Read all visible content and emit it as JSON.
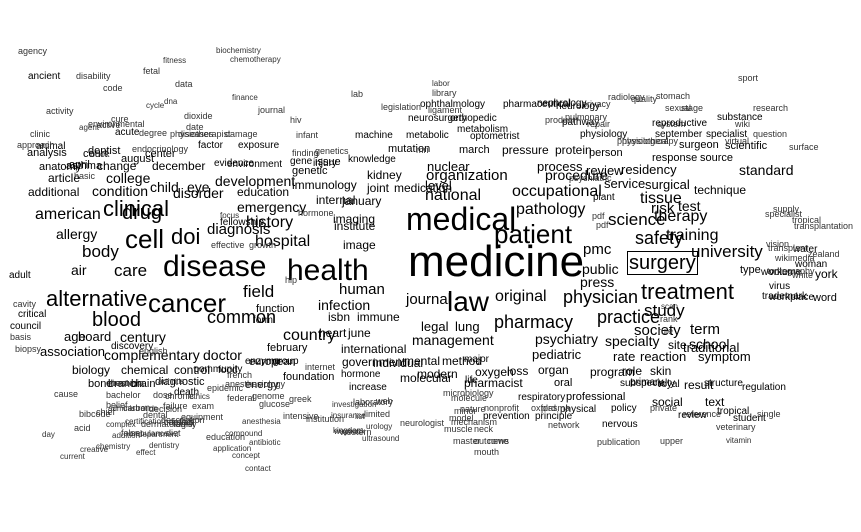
{
  "words": [
    "medicine",
    "medical",
    "health",
    "disease",
    "law",
    "cell",
    "cancer",
    "surgery",
    "patient",
    "treatment",
    "alternative",
    "doi",
    "drug",
    "clinical",
    "blood",
    "hospital",
    "physician",
    "practice",
    "pharmacy",
    "care",
    "history",
    "common",
    "body",
    "human",
    "original",
    "journal",
    "safety",
    "science",
    "university",
    "study",
    "field",
    "infection",
    "therapy",
    "tissue",
    "training",
    "society",
    "term",
    "school",
    "pathology",
    "national",
    "occupational",
    "american",
    "diagnosis",
    "emergency",
    "management",
    "legal",
    "lung",
    "psychiatry",
    "specialty",
    "country",
    "public",
    "press",
    "pmc",
    "review",
    "residency",
    "service",
    "surgical",
    "organization",
    "procedure",
    "child",
    "eye",
    "development",
    "disorder",
    "education",
    "air",
    "allergy",
    "condition",
    "college",
    "association",
    "complementary",
    "doctor",
    "age",
    "board",
    "century",
    "molecular",
    "pharmacist",
    "modern",
    "oxygen",
    "organ",
    "program",
    "pediatric",
    "rate",
    "reaction",
    "symptom",
    "traditional",
    "site",
    "role",
    "skin",
    "result",
    "social",
    "text",
    "risk",
    "test",
    "standard",
    "technique",
    "type",
    "worker",
    "york",
    "woman",
    "water",
    "additional",
    "article",
    "change",
    "december",
    "dentist",
    "court",
    "center",
    "nuclear",
    "process",
    "person",
    "march",
    "pressure",
    "protein",
    "mutation",
    "level",
    "medication",
    "immunology",
    "genetic",
    "issue",
    "injury",
    "isbn",
    "immune",
    "heart",
    "june",
    "government",
    "individual",
    "international",
    "february",
    "european",
    "energy",
    "foundation",
    "biology",
    "chemical",
    "control",
    "brain",
    "branch",
    "bone",
    "diagnostic",
    "death",
    "community",
    "food",
    "enzyme",
    "group",
    "hormone",
    "increase",
    "mental",
    "method",
    "life",
    "loss",
    "oral",
    "professional",
    "respiratory",
    "physical",
    "policy",
    "primary",
    "royal",
    "regulation",
    "tropical",
    "structure",
    "subspecialty",
    "system",
    "september",
    "specialist",
    "surgeon",
    "scientific",
    "response",
    "source",
    "review",
    "student",
    "single",
    "virus",
    "volume",
    "workplace",
    "word",
    "wikimedia",
    "vision",
    "zealand",
    "stomach",
    "sport",
    "sexual",
    "stage",
    "reproductive",
    "substance",
    "research",
    "quality",
    "radiology",
    "privacy",
    "neurosurgery",
    "orthopedic",
    "ophthalmology",
    "optometrist",
    "nephrology",
    "neurology",
    "pharmaceutical",
    "metabolic",
    "metabolism",
    "machine",
    "mri",
    "pathway",
    "physiology",
    "plant",
    "pdf",
    "pdf",
    "rank",
    "scan",
    "rule",
    "reference",
    "plasma",
    "prevention",
    "principle",
    "nervous",
    "private",
    "publication",
    "mouth",
    "outcome",
    "neck",
    "master",
    "muscle",
    "model",
    "nature",
    "network",
    "nonprofit",
    "news",
    "oxford",
    "physiological",
    "physiotherapy",
    "psychiatric",
    "product",
    "pulmonary",
    "repair",
    "internal",
    "january",
    "imaging",
    "institute",
    "image",
    "kidney",
    "joint",
    "knowledge",
    "gene",
    "genetics",
    "fellowship",
    "focus",
    "form",
    "function",
    "finding",
    "factor",
    "exposure",
    "evidence",
    "environment",
    "effective",
    "growth",
    "hiv",
    "hormone",
    "hip",
    "infant",
    "journal",
    "legislation",
    "ligament",
    "lab",
    "library",
    "labor",
    "major",
    "molecule",
    "minor",
    "mechanism",
    "microbiology",
    "neurologist",
    "chemotherapy",
    "biochemistry",
    "anatomy",
    "analysis",
    "animal",
    "april",
    "approach",
    "acid",
    "asthma",
    "acute",
    "active",
    "august",
    "bacteria",
    "book",
    "basic",
    "belief",
    "bibcode",
    "bachelor",
    "carbon",
    "cardiac",
    "cause",
    "chest",
    "chronic",
    "clinic",
    "code",
    "cycle",
    "dna",
    "data",
    "date",
    "dose",
    "decision",
    "defect",
    "diet",
    "dental",
    "description",
    "dermatologist",
    "disability",
    "education",
    "effect",
    "ethics",
    "epidemic",
    "exam",
    "equipment",
    "anesthesiology",
    "anesthesia",
    "antibiotic",
    "application",
    "arthritis",
    "ancient",
    "agency",
    "agent",
    "activity",
    "adult",
    "critical",
    "council",
    "basis",
    "biopsy",
    "cavity",
    "certification",
    "chief",
    "administration",
    "addition",
    "ambulance",
    "complex",
    "chemistry",
    "creative",
    "current",
    "day",
    "discovery",
    "english",
    "failure",
    "false",
    "family",
    "department",
    "dentistry",
    "compound",
    "concept",
    "contact",
    "dioxide",
    "damage",
    "degree",
    "cure",
    "diseases",
    "physiotherapist",
    "endocrinology",
    "environmental",
    "fetal",
    "fitness",
    "finance",
    "french",
    "federal",
    "genome",
    "glucose",
    "greek",
    "insurance",
    "intensive",
    "institution",
    "investigation",
    "internet",
    "kingdom",
    "laboratory",
    "limited",
    "list",
    "wayback",
    "ultrasound",
    "urology",
    "web",
    "western",
    "trademark",
    "tomography",
    "transplant",
    "transplantation",
    "tropical",
    "specialist",
    "supply",
    "surface",
    "question",
    "virtual",
    "wiki",
    "veterinary",
    "upper",
    "vitamin",
    "white"
  ]
}
